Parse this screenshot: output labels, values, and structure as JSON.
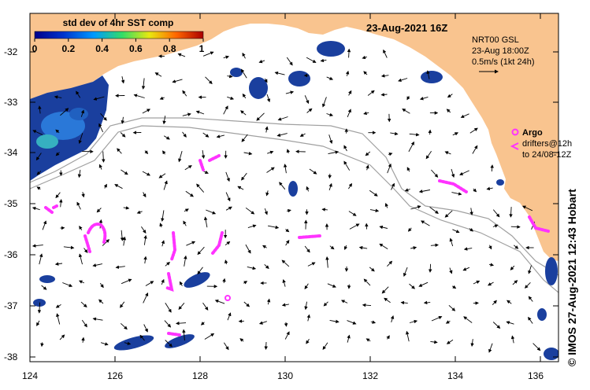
{
  "map": {
    "date_title": "23-Aug-2021 16Z",
    "colorbar": {
      "title": "std dev of 4hr SST comp",
      "tick_labels": [
        "0",
        "0.2",
        "0.4",
        "0.6",
        "0.8",
        "1"
      ],
      "range": [
        0,
        1
      ],
      "colors": [
        "#00008b",
        "#0033cc",
        "#0099ff",
        "#33dd66",
        "#e8e810",
        "#ff6600",
        "#aa0000"
      ]
    },
    "current_legend": {
      "source": "NRT00 GSL",
      "time": "23-Aug 18:00Z",
      "scale": "0.5m/s (1kt 24h)"
    },
    "argo_legend": {
      "label": "Argo",
      "drifters_line1": "drifters@12h",
      "drifters_line2": "to 24/08-12Z",
      "color": "#ff33ff"
    },
    "credit": "© IMOS 27-Aug-2021 12:43 Hobart",
    "x_axis": {
      "ticks": [
        "124",
        "126",
        "128",
        "130",
        "132",
        "134",
        "136"
      ]
    },
    "y_axis": {
      "ticks": [
        "-32",
        "-33",
        "-34",
        "-35",
        "-36",
        "-37",
        "-38"
      ]
    },
    "colors": {
      "land": "#f9c48f",
      "ocean": "#ffffff",
      "sst_low": "#1a3f9e",
      "contour": "#a0a0a0",
      "argo": "#ff33ff"
    }
  }
}
